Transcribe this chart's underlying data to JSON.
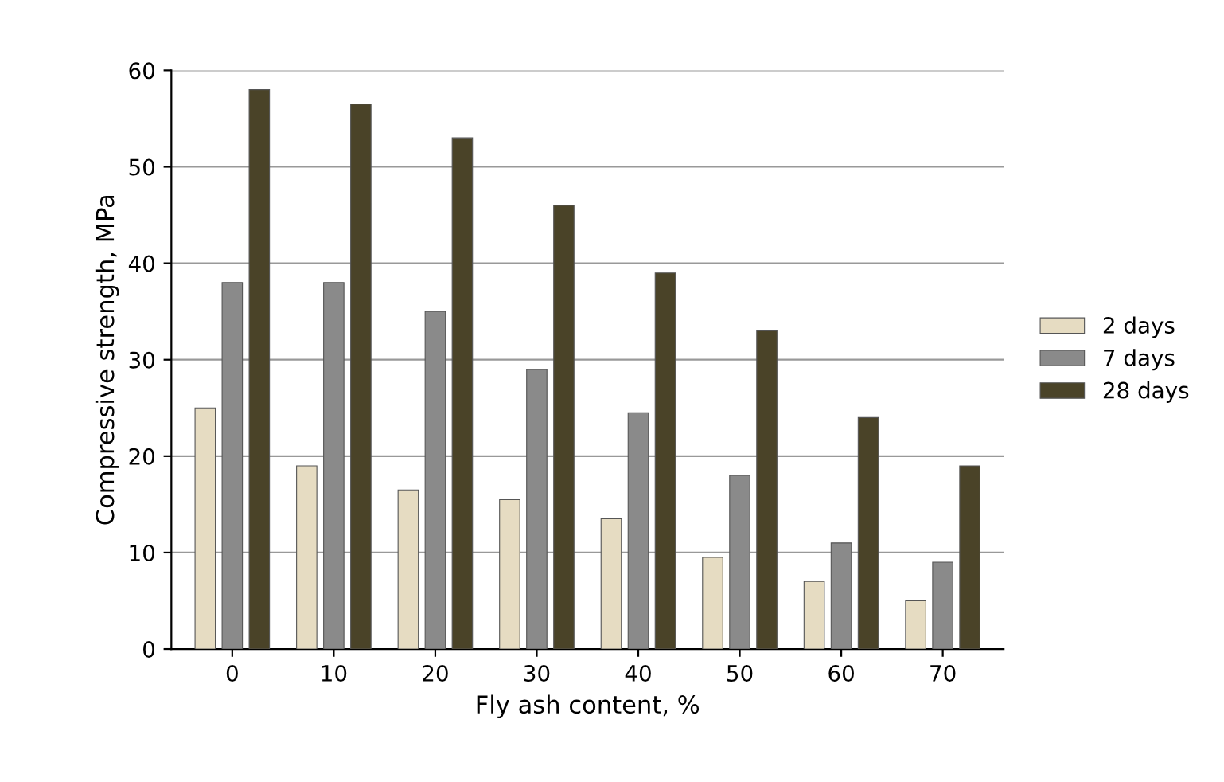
{
  "chart_data": {
    "type": "bar",
    "xlabel": "Fly ash content, %",
    "ylabel": "Compressive strength, MPa",
    "categories": [
      "0",
      "10",
      "20",
      "30",
      "40",
      "50",
      "60",
      "70"
    ],
    "series": [
      {
        "name": "2 days",
        "color": "#e6dcc2",
        "values": [
          25,
          19,
          16.5,
          15.5,
          13.5,
          9.5,
          7,
          5
        ]
      },
      {
        "name": "7 days",
        "color": "#8a8a8a",
        "values": [
          38,
          38,
          35,
          29,
          24.5,
          18,
          11,
          9
        ]
      },
      {
        "name": "28 days",
        "color": "#4a4328",
        "values": [
          58,
          56.5,
          53,
          46,
          39,
          33,
          24,
          19
        ]
      }
    ],
    "ylim": [
      0,
      60
    ],
    "yticks": [
      0,
      10,
      20,
      30,
      40,
      50,
      60
    ],
    "grid": "y",
    "legend": "right"
  }
}
